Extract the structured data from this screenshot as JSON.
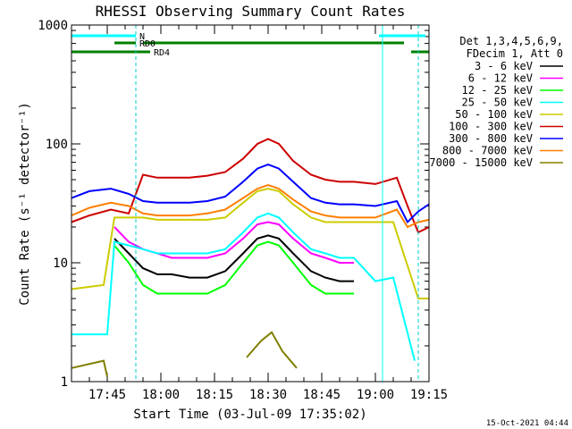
{
  "chart_data": {
    "type": "line",
    "title": "RHESSI Observing Summary Count Rates",
    "xlabel": "Start Time (03-Jul-09 17:35:02)",
    "ylabel": "Count Rate (s⁻¹ detector⁻¹)",
    "y_scale": "log",
    "ylim": [
      1,
      1000
    ],
    "xlim": [
      "17:35",
      "19:15"
    ],
    "x_ticks": [
      "17:45",
      "18:00",
      "18:15",
      "18:30",
      "18:45",
      "19:00",
      "19:15"
    ],
    "y_ticks": [
      "1",
      "10",
      "100",
      "1000"
    ],
    "footer": "15-Oct-2021 04:44",
    "legend": {
      "placement": "right",
      "header": [
        "Det 1,3,4,5,6,9,",
        "FDecim 1, Att 0"
      ]
    },
    "flags": [
      {
        "label": "N",
        "color": "#00ffff",
        "segments": [
          [
            "17:35",
            "17:53"
          ],
          [
            "19:01",
            "19:14"
          ]
        ]
      },
      {
        "label": "RD0",
        "color": "#008000",
        "segments": [
          [
            "17:47",
            "17:53"
          ],
          [
            "17:55",
            "19:08"
          ]
        ]
      },
      {
        "label": "RD4",
        "color": "#008000",
        "segments": [
          [
            "17:35",
            "17:57"
          ],
          [
            "19:10",
            "19:15"
          ]
        ]
      }
    ],
    "vlines": [
      "17:53",
      "19:12"
    ],
    "cyan_vlines": [
      "19:02"
    ],
    "series": [
      {
        "name": "3 - 6 keV",
        "color": "#000000",
        "x": [
          "17:47",
          "17:51",
          "17:55",
          "17:59",
          "18:03",
          "18:08",
          "18:13",
          "18:18",
          "18:23",
          "18:27",
          "18:30",
          "18:33",
          "18:37",
          "18:42",
          "18:46",
          "18:50",
          "18:54"
        ],
        "y": [
          16,
          12,
          9,
          8,
          8,
          7.5,
          7.5,
          8.5,
          12,
          16,
          17,
          16,
          12,
          8.5,
          7.5,
          7,
          7
        ]
      },
      {
        "name": "6 - 12 keV",
        "color": "#ff00ff",
        "x": [
          "17:47",
          "17:51",
          "17:55",
          "17:59",
          "18:03",
          "18:08",
          "18:13",
          "18:18",
          "18:23",
          "18:27",
          "18:30",
          "18:33",
          "18:37",
          "18:42",
          "18:46",
          "18:50",
          "18:54"
        ],
        "y": [
          20,
          15,
          13,
          12,
          11,
          11,
          11,
          12,
          16,
          21,
          22,
          21,
          16,
          12,
          11,
          10,
          10
        ]
      },
      {
        "name": "12 - 25 keV",
        "color": "#00ff00",
        "x": [
          "17:47",
          "17:51",
          "17:55",
          "17:59",
          "18:03",
          "18:08",
          "18:13",
          "18:18",
          "18:23",
          "18:27",
          "18:30",
          "18:33",
          "18:37",
          "18:42",
          "18:46",
          "18:50",
          "18:54"
        ],
        "y": [
          14,
          10,
          6.5,
          5.5,
          5.5,
          5.5,
          5.5,
          6.5,
          10,
          14,
          15,
          14,
          10,
          6.5,
          5.5,
          5.5,
          5.5
        ]
      },
      {
        "name": "25 - 50 keV",
        "color": "#00ffff",
        "x": [
          "17:35",
          "17:45",
          "17:47",
          "17:51",
          "17:55",
          "17:59",
          "18:03",
          "18:08",
          "18:13",
          "18:18",
          "18:23",
          "18:27",
          "18:30",
          "18:33",
          "18:37",
          "18:42",
          "18:46",
          "18:50",
          "18:54",
          "19:00",
          "19:05",
          "19:11"
        ],
        "y": [
          2.5,
          2.5,
          15,
          14,
          13,
          12,
          12,
          12,
          12,
          13,
          18,
          24,
          26,
          24,
          18,
          13,
          12,
          11,
          11,
          7,
          7.5,
          1.5
        ]
      },
      {
        "name": "50 - 100 keV",
        "color": "#cccc00",
        "x": [
          "17:35",
          "17:44",
          "17:47",
          "17:51",
          "17:55",
          "17:59",
          "18:03",
          "18:08",
          "18:13",
          "18:18",
          "18:23",
          "18:27",
          "18:30",
          "18:33",
          "18:37",
          "18:42",
          "18:46",
          "18:50",
          "18:54",
          "19:00",
          "19:05",
          "19:12",
          "19:15"
        ],
        "y": [
          6,
          6.5,
          24,
          24,
          24,
          23,
          23,
          23,
          23,
          24,
          32,
          40,
          42,
          40,
          31,
          24,
          22,
          22,
          22,
          22,
          22,
          5,
          5
        ]
      },
      {
        "name": "100 - 300 keV",
        "color": "#cc0000",
        "x": [
          "17:35",
          "17:40",
          "17:46",
          "17:51",
          "17:55",
          "17:59",
          "18:03",
          "18:08",
          "18:13",
          "18:18",
          "18:23",
          "18:27",
          "18:30",
          "18:33",
          "18:37",
          "18:42",
          "18:46",
          "18:50",
          "18:54",
          "19:00",
          "19:06",
          "19:09",
          "19:12",
          "19:15"
        ],
        "y": [
          22,
          25,
          28,
          26,
          55,
          52,
          52,
          52,
          54,
          58,
          75,
          100,
          110,
          100,
          72,
          55,
          50,
          48,
          48,
          46,
          52,
          30,
          18,
          20
        ]
      },
      {
        "name": "300 - 800 keV",
        "color": "#0000ff",
        "x": [
          "17:35",
          "17:40",
          "17:46",
          "17:51",
          "17:55",
          "17:59",
          "18:03",
          "18:08",
          "18:13",
          "18:18",
          "18:23",
          "18:27",
          "18:30",
          "18:33",
          "18:37",
          "18:42",
          "18:46",
          "18:50",
          "18:54",
          "19:00",
          "19:06",
          "19:09",
          "19:12",
          "19:15"
        ],
        "y": [
          35,
          40,
          42,
          38,
          33,
          32,
          32,
          32,
          33,
          36,
          48,
          62,
          67,
          62,
          48,
          35,
          32,
          31,
          31,
          30,
          33,
          22,
          27,
          31
        ]
      },
      {
        "name": "800 - 7000 keV",
        "color": "#ff7f00",
        "x": [
          "17:35",
          "17:40",
          "17:46",
          "17:51",
          "17:55",
          "17:59",
          "18:03",
          "18:08",
          "18:13",
          "18:18",
          "18:23",
          "18:27",
          "18:30",
          "18:33",
          "18:37",
          "18:42",
          "18:46",
          "18:50",
          "18:54",
          "19:00",
          "19:06",
          "19:09",
          "19:12",
          "19:15"
        ],
        "y": [
          25,
          29,
          32,
          30,
          26,
          25,
          25,
          25,
          26,
          28,
          35,
          42,
          45,
          42,
          34,
          27,
          25,
          24,
          24,
          24,
          28,
          20,
          22,
          23
        ]
      },
      {
        "name": "7000 - 15000 keV",
        "color": "#808000",
        "x": [
          "17:35",
          "17:44",
          "17:45",
          "17:47",
          "18:20",
          "18:24",
          "18:28",
          "18:31",
          "18:34",
          "18:38",
          "18:40"
        ],
        "y": [
          1.3,
          1.5,
          1.1,
          null,
          null,
          1.6,
          2.2,
          2.6,
          1.8,
          1.3,
          null
        ]
      }
    ]
  }
}
